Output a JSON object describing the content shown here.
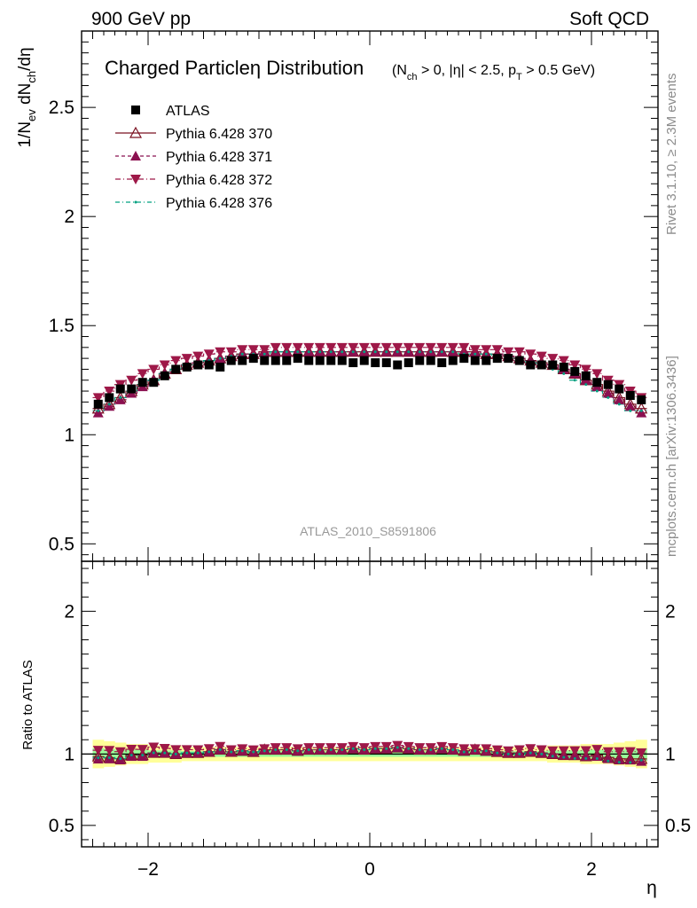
{
  "header": {
    "left": "900 GeV pp",
    "right": "Soft QCD"
  },
  "side_labels": {
    "rivet": "Rivet 3.1.10, ≥ 2.3M events",
    "mcplots": "mcplots.cern.ch [arXiv:1306.3436]"
  },
  "watermark": "ATLAS_2010_S8591806",
  "colors": {
    "atlas": "#000000",
    "p370": "#7a1020",
    "p371": "#8b1050",
    "p372": "#9e1848",
    "p376": "#00a080",
    "band_outer": "#ffff99",
    "band_inner": "#99ff99"
  },
  "chart_data": [
    {
      "type": "scatter",
      "title_main": "Charged Particle",
      "title_eta": "η",
      "title_rest": " Distribution",
      "subtitle": "(N_ch > 0, |η| < 2.5, p_T > 0.5 GeV)",
      "ylabel": "1/N_ev dN_ch/dη",
      "xlabel": "η",
      "xlim": [
        -2.6,
        2.6
      ],
      "ylim": [
        0.42,
        2.85
      ],
      "x_ticks": [
        -2,
        0,
        2
      ],
      "y_ticks": [
        0.5,
        1,
        1.5,
        2,
        2.5
      ],
      "x_tick_labels": [
        "−2",
        "0",
        "2"
      ],
      "y_tick_labels": [
        "0.5",
        "1",
        "1.5",
        "2",
        "2.5"
      ],
      "legend_position": "top-left",
      "x": [
        -2.45,
        -2.35,
        -2.25,
        -2.15,
        -2.05,
        -1.95,
        -1.85,
        -1.75,
        -1.65,
        -1.55,
        -1.45,
        -1.35,
        -1.25,
        -1.15,
        -1.05,
        -0.95,
        -0.85,
        -0.75,
        -0.65,
        -0.55,
        -0.45,
        -0.35,
        -0.25,
        -0.15,
        -0.05,
        0.05,
        0.15,
        0.25,
        0.35,
        0.45,
        0.55,
        0.65,
        0.75,
        0.85,
        0.95,
        1.05,
        1.15,
        1.25,
        1.35,
        1.45,
        1.55,
        1.65,
        1.75,
        1.85,
        1.95,
        2.05,
        2.15,
        2.25,
        2.35,
        2.45
      ],
      "series": [
        {
          "name": "ATLAS",
          "marker": "square",
          "values": [
            1.14,
            1.17,
            1.21,
            1.21,
            1.24,
            1.24,
            1.27,
            1.3,
            1.31,
            1.32,
            1.32,
            1.31,
            1.34,
            1.34,
            1.35,
            1.34,
            1.34,
            1.34,
            1.35,
            1.34,
            1.34,
            1.34,
            1.34,
            1.33,
            1.34,
            1.33,
            1.33,
            1.32,
            1.33,
            1.34,
            1.34,
            1.33,
            1.34,
            1.35,
            1.34,
            1.34,
            1.35,
            1.35,
            1.34,
            1.32,
            1.32,
            1.32,
            1.31,
            1.29,
            1.27,
            1.24,
            1.23,
            1.21,
            1.18,
            1.16
          ]
        },
        {
          "name": "Pythia 6.428 370",
          "marker": "triangle-up-open",
          "values": [
            1.12,
            1.14,
            1.17,
            1.2,
            1.23,
            1.25,
            1.28,
            1.3,
            1.32,
            1.33,
            1.34,
            1.35,
            1.36,
            1.37,
            1.37,
            1.38,
            1.38,
            1.38,
            1.38,
            1.38,
            1.38,
            1.38,
            1.38,
            1.38,
            1.38,
            1.38,
            1.38,
            1.38,
            1.38,
            1.38,
            1.38,
            1.38,
            1.38,
            1.38,
            1.38,
            1.37,
            1.37,
            1.36,
            1.35,
            1.34,
            1.33,
            1.32,
            1.3,
            1.28,
            1.25,
            1.23,
            1.2,
            1.17,
            1.14,
            1.12
          ]
        },
        {
          "name": "Pythia 6.428 371",
          "marker": "triangle-up",
          "values": [
            1.1,
            1.13,
            1.16,
            1.19,
            1.22,
            1.25,
            1.28,
            1.3,
            1.32,
            1.33,
            1.34,
            1.35,
            1.36,
            1.37,
            1.37,
            1.38,
            1.38,
            1.38,
            1.38,
            1.38,
            1.38,
            1.38,
            1.38,
            1.38,
            1.38,
            1.38,
            1.38,
            1.38,
            1.38,
            1.38,
            1.38,
            1.38,
            1.38,
            1.38,
            1.38,
            1.37,
            1.37,
            1.36,
            1.35,
            1.34,
            1.33,
            1.32,
            1.3,
            1.28,
            1.25,
            1.22,
            1.19,
            1.16,
            1.13,
            1.1
          ]
        },
        {
          "name": "Pythia 6.428 372",
          "marker": "triangle-down",
          "values": [
            1.17,
            1.2,
            1.23,
            1.25,
            1.28,
            1.3,
            1.32,
            1.34,
            1.35,
            1.36,
            1.37,
            1.38,
            1.38,
            1.39,
            1.39,
            1.39,
            1.4,
            1.4,
            1.4,
            1.4,
            1.4,
            1.4,
            1.4,
            1.4,
            1.4,
            1.4,
            1.4,
            1.4,
            1.4,
            1.4,
            1.4,
            1.4,
            1.4,
            1.4,
            1.39,
            1.39,
            1.39,
            1.38,
            1.38,
            1.37,
            1.36,
            1.35,
            1.34,
            1.32,
            1.3,
            1.28,
            1.25,
            1.23,
            1.2,
            1.17
          ]
        },
        {
          "name": "Pythia 6.428 376",
          "marker": "dot",
          "values": [
            1.11,
            1.14,
            1.17,
            1.2,
            1.23,
            1.25,
            1.28,
            1.3,
            1.32,
            1.33,
            1.34,
            1.35,
            1.36,
            1.37,
            1.37,
            1.37,
            1.38,
            1.38,
            1.38,
            1.38,
            1.38,
            1.38,
            1.38,
            1.38,
            1.38,
            1.38,
            1.38,
            1.38,
            1.38,
            1.38,
            1.38,
            1.38,
            1.38,
            1.37,
            1.37,
            1.37,
            1.36,
            1.35,
            1.34,
            1.33,
            1.32,
            1.3,
            1.28,
            1.25,
            1.23,
            1.2,
            1.17,
            1.14,
            1.11,
            1.11
          ]
        }
      ]
    },
    {
      "type": "scatter",
      "ylabel": "Ratio to ATLAS",
      "xlim": [
        -2.6,
        2.6
      ],
      "ylim": [
        0.35,
        2.35
      ],
      "y_ticks": [
        0.5,
        1,
        2
      ],
      "y_tick_labels": [
        "0.5",
        "1",
        "2"
      ],
      "reference": 1,
      "band_outer_halfwidth": [
        0.1,
        0.09,
        0.08,
        0.07,
        0.07,
        0.06,
        0.06,
        0.06,
        0.05,
        0.05,
        0.05,
        0.05,
        0.05,
        0.05,
        0.05,
        0.05,
        0.05,
        0.05,
        0.05,
        0.05,
        0.05,
        0.05,
        0.05,
        0.05,
        0.05,
        0.05,
        0.05,
        0.05,
        0.05,
        0.05,
        0.05,
        0.05,
        0.05,
        0.05,
        0.05,
        0.05,
        0.05,
        0.05,
        0.05,
        0.05,
        0.05,
        0.06,
        0.06,
        0.06,
        0.07,
        0.07,
        0.07,
        0.08,
        0.09,
        0.1
      ],
      "band_inner_halfwidth": [
        0.04,
        0.035,
        0.03,
        0.03,
        0.03,
        0.025,
        0.025,
        0.025,
        0.02,
        0.02,
        0.02,
        0.02,
        0.02,
        0.02,
        0.02,
        0.02,
        0.02,
        0.02,
        0.02,
        0.02,
        0.02,
        0.02,
        0.02,
        0.02,
        0.02,
        0.02,
        0.02,
        0.02,
        0.02,
        0.02,
        0.02,
        0.02,
        0.02,
        0.02,
        0.02,
        0.02,
        0.02,
        0.02,
        0.02,
        0.02,
        0.02,
        0.025,
        0.025,
        0.025,
        0.03,
        0.03,
        0.03,
        0.03,
        0.035,
        0.04
      ]
    }
  ]
}
